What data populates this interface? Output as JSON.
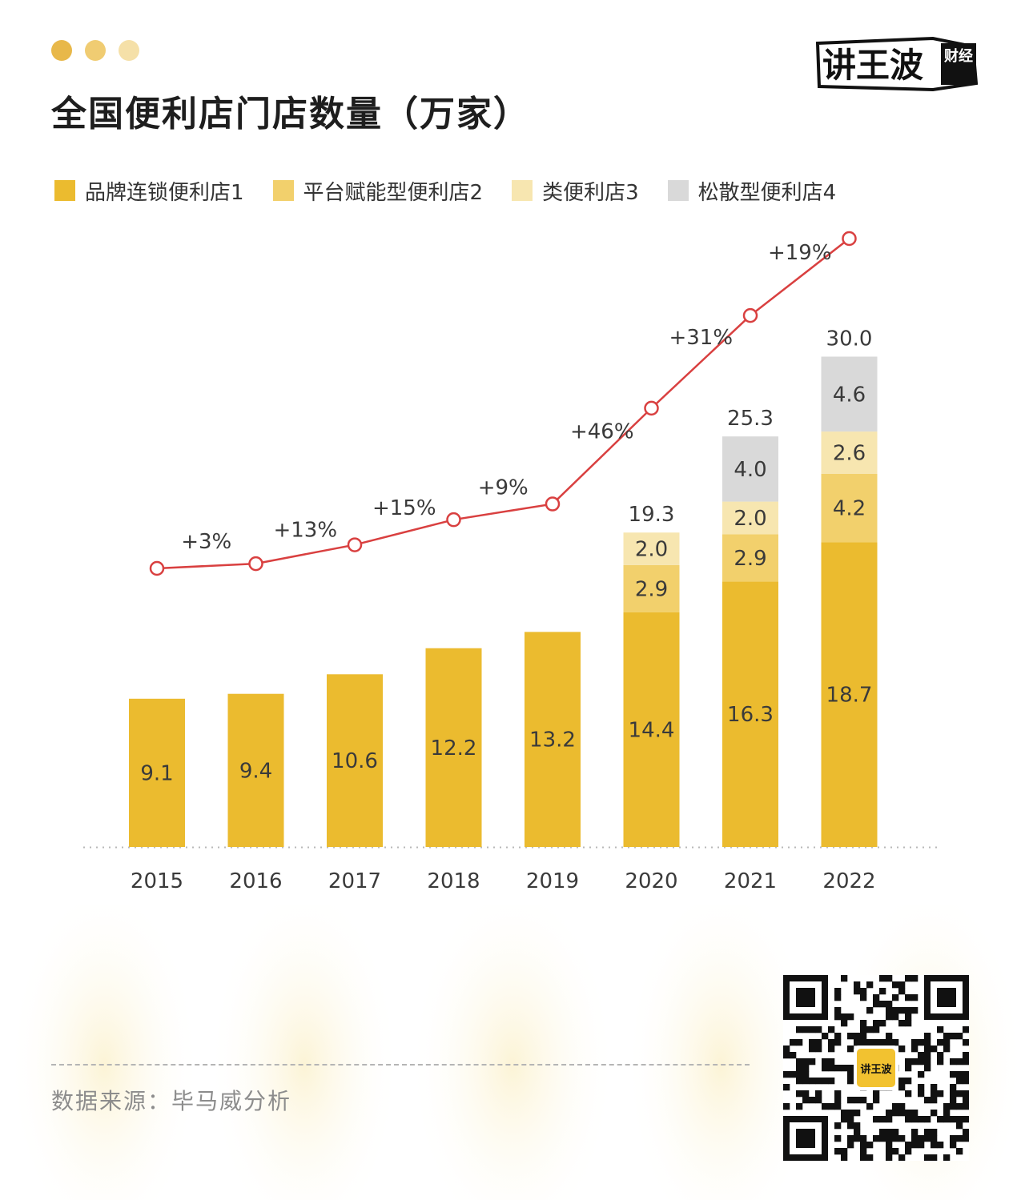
{
  "header": {
    "title": "全国便利店门店数量（万家）",
    "logo_text_main": "讲王波",
    "logo_text_sub": "财经",
    "dots_colors": [
      "#e8b84a",
      "#f0cc72",
      "#f5e0a8"
    ]
  },
  "legend": [
    {
      "label": "品牌连锁便利店1",
      "color": "#ebbb2f"
    },
    {
      "label": "平台赋能型便利店2",
      "color": "#f2d06c"
    },
    {
      "label": "类便利店3",
      "color": "#f7e6b0"
    },
    {
      "label": "松散型便利店4",
      "color": "#d9d9d9"
    }
  ],
  "chart_data": {
    "type": "bar",
    "stacked": true,
    "categories": [
      "2015",
      "2016",
      "2017",
      "2018",
      "2019",
      "2020",
      "2021",
      "2022"
    ],
    "ylim": [
      0,
      32
    ],
    "series": [
      {
        "name": "品牌连锁便利店1",
        "values": [
          9.1,
          9.4,
          10.6,
          12.2,
          13.2,
          14.4,
          16.3,
          18.7
        ]
      },
      {
        "name": "平台赋能型便利店2",
        "values": [
          null,
          null,
          null,
          null,
          null,
          2.9,
          2.9,
          4.2
        ]
      },
      {
        "name": "类便利店3",
        "values": [
          null,
          null,
          null,
          null,
          null,
          2.0,
          2.0,
          2.6
        ]
      },
      {
        "name": "松散型便利店4",
        "values": [
          null,
          null,
          null,
          null,
          null,
          null,
          4.0,
          4.6
        ]
      }
    ],
    "totals": [
      null,
      null,
      null,
      null,
      null,
      "19.3",
      "25.3",
      "30.0"
    ],
    "growth_labels": [
      "+3%",
      "+13%",
      "+15%",
      "+9%",
      "+46%",
      "+31%",
      "+19%"
    ],
    "line_color": "#d94040",
    "baseline": "dotted"
  },
  "footer": {
    "source": "数据来源：毕马威分析"
  },
  "qr": {
    "center_label": "讲王波"
  }
}
